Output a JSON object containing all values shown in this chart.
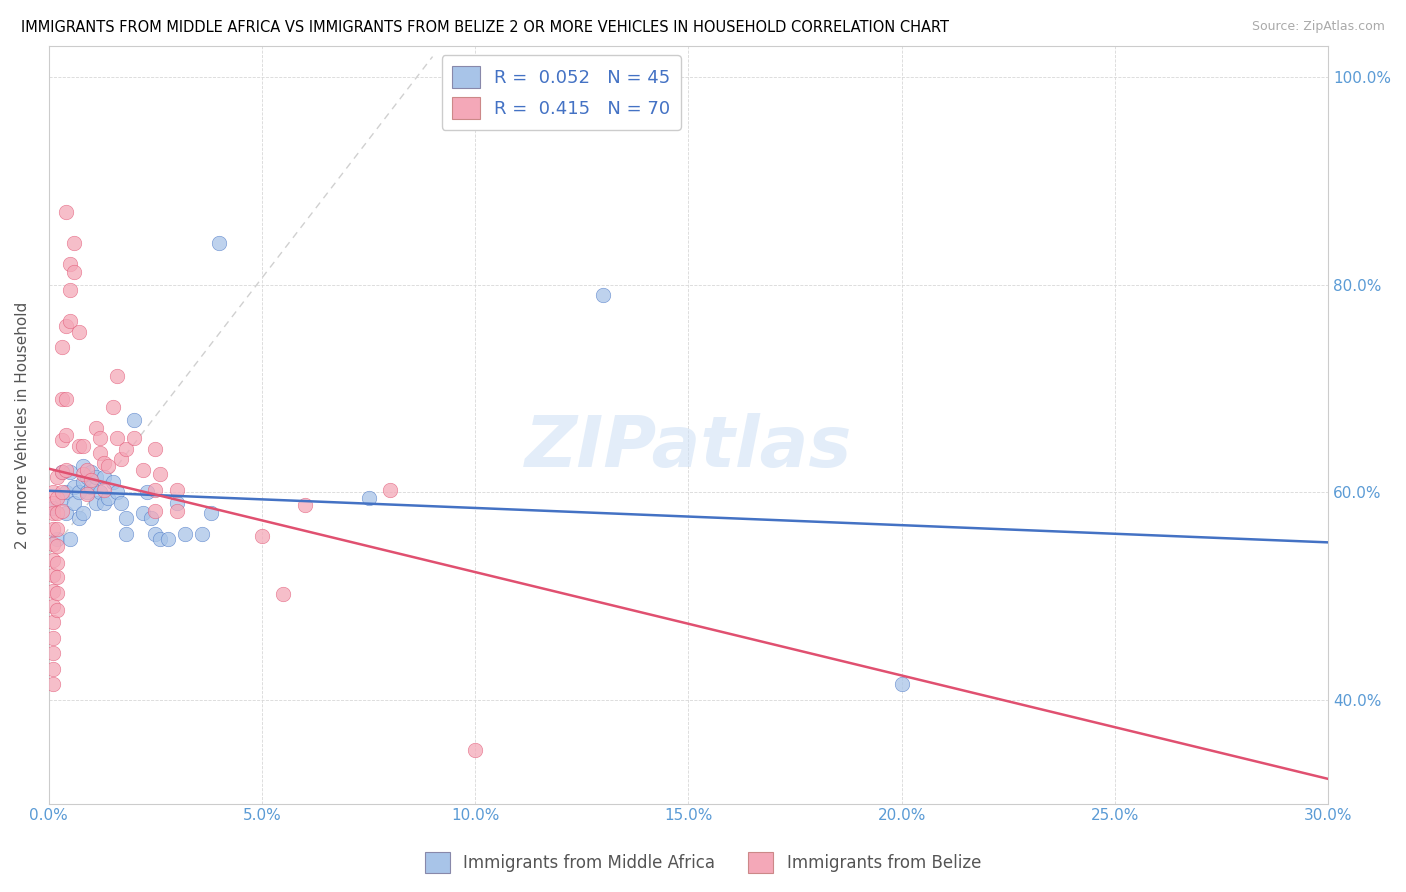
{
  "title": "IMMIGRANTS FROM MIDDLE AFRICA VS IMMIGRANTS FROM BELIZE 2 OR MORE VEHICLES IN HOUSEHOLD CORRELATION CHART",
  "source": "Source: ZipAtlas.com",
  "xmin": 0.0,
  "xmax": 0.3,
  "ymin": 0.3,
  "ymax": 1.03,
  "y_tick_vals": [
    0.4,
    0.6,
    0.8,
    1.0
  ],
  "x_tick_vals": [
    0.0,
    0.05,
    0.1,
    0.15,
    0.2,
    0.25,
    0.3
  ],
  "legend_label_blue": "Immigrants from Middle Africa",
  "legend_label_pink": "Immigrants from Belize",
  "r_blue": "0.052",
  "n_blue": "45",
  "r_pink": "0.415",
  "n_pink": "70",
  "watermark": "ZIPatlas",
  "color_blue": "#a8c4e8",
  "color_pink": "#f4a8b8",
  "trendline_blue": "#4472c4",
  "trendline_pink": "#e05070",
  "diagonal_color": "#d0d0d0",
  "blue_scatter": [
    [
      0.001,
      0.585
    ],
    [
      0.002,
      0.555
    ],
    [
      0.003,
      0.595
    ],
    [
      0.003,
      0.62
    ],
    [
      0.004,
      0.58
    ],
    [
      0.004,
      0.6
    ],
    [
      0.005,
      0.62
    ],
    [
      0.005,
      0.555
    ],
    [
      0.006,
      0.59
    ],
    [
      0.006,
      0.605
    ],
    [
      0.007,
      0.575
    ],
    [
      0.007,
      0.6
    ],
    [
      0.008,
      0.61
    ],
    [
      0.008,
      0.625
    ],
    [
      0.008,
      0.58
    ],
    [
      0.009,
      0.6
    ],
    [
      0.009,
      0.615
    ],
    [
      0.01,
      0.62
    ],
    [
      0.01,
      0.605
    ],
    [
      0.011,
      0.615
    ],
    [
      0.011,
      0.59
    ],
    [
      0.012,
      0.6
    ],
    [
      0.013,
      0.615
    ],
    [
      0.013,
      0.59
    ],
    [
      0.014,
      0.595
    ],
    [
      0.015,
      0.61
    ],
    [
      0.016,
      0.6
    ],
    [
      0.017,
      0.59
    ],
    [
      0.018,
      0.575
    ],
    [
      0.018,
      0.56
    ],
    [
      0.02,
      0.67
    ],
    [
      0.022,
      0.58
    ],
    [
      0.023,
      0.6
    ],
    [
      0.024,
      0.575
    ],
    [
      0.025,
      0.56
    ],
    [
      0.026,
      0.555
    ],
    [
      0.028,
      0.555
    ],
    [
      0.03,
      0.59
    ],
    [
      0.032,
      0.56
    ],
    [
      0.036,
      0.56
    ],
    [
      0.038,
      0.58
    ],
    [
      0.04,
      0.84
    ],
    [
      0.075,
      0.595
    ],
    [
      0.13,
      0.79
    ],
    [
      0.2,
      0.415
    ]
  ],
  "pink_scatter": [
    [
      0.001,
      0.6
    ],
    [
      0.001,
      0.59
    ],
    [
      0.001,
      0.58
    ],
    [
      0.001,
      0.565
    ],
    [
      0.001,
      0.55
    ],
    [
      0.001,
      0.535
    ],
    [
      0.001,
      0.52
    ],
    [
      0.001,
      0.505
    ],
    [
      0.001,
      0.49
    ],
    [
      0.001,
      0.475
    ],
    [
      0.001,
      0.46
    ],
    [
      0.001,
      0.445
    ],
    [
      0.001,
      0.43
    ],
    [
      0.001,
      0.415
    ],
    [
      0.002,
      0.615
    ],
    [
      0.002,
      0.595
    ],
    [
      0.002,
      0.58
    ],
    [
      0.002,
      0.565
    ],
    [
      0.002,
      0.548
    ],
    [
      0.002,
      0.532
    ],
    [
      0.002,
      0.518
    ],
    [
      0.002,
      0.503
    ],
    [
      0.002,
      0.487
    ],
    [
      0.003,
      0.74
    ],
    [
      0.003,
      0.69
    ],
    [
      0.003,
      0.65
    ],
    [
      0.003,
      0.62
    ],
    [
      0.003,
      0.6
    ],
    [
      0.003,
      0.582
    ],
    [
      0.004,
      0.87
    ],
    [
      0.004,
      0.76
    ],
    [
      0.004,
      0.69
    ],
    [
      0.004,
      0.655
    ],
    [
      0.004,
      0.622
    ],
    [
      0.005,
      0.82
    ],
    [
      0.005,
      0.795
    ],
    [
      0.005,
      0.765
    ],
    [
      0.006,
      0.84
    ],
    [
      0.006,
      0.812
    ],
    [
      0.007,
      0.755
    ],
    [
      0.007,
      0.645
    ],
    [
      0.008,
      0.645
    ],
    [
      0.008,
      0.618
    ],
    [
      0.009,
      0.622
    ],
    [
      0.009,
      0.598
    ],
    [
      0.01,
      0.612
    ],
    [
      0.011,
      0.662
    ],
    [
      0.012,
      0.652
    ],
    [
      0.012,
      0.638
    ],
    [
      0.013,
      0.628
    ],
    [
      0.013,
      0.602
    ],
    [
      0.014,
      0.625
    ],
    [
      0.015,
      0.682
    ],
    [
      0.016,
      0.712
    ],
    [
      0.016,
      0.652
    ],
    [
      0.017,
      0.632
    ],
    [
      0.018,
      0.642
    ],
    [
      0.02,
      0.652
    ],
    [
      0.022,
      0.622
    ],
    [
      0.025,
      0.602
    ],
    [
      0.025,
      0.582
    ],
    [
      0.025,
      0.642
    ],
    [
      0.026,
      0.618
    ],
    [
      0.03,
      0.602
    ],
    [
      0.03,
      0.582
    ],
    [
      0.05,
      0.558
    ],
    [
      0.055,
      0.502
    ],
    [
      0.06,
      0.588
    ],
    [
      0.08,
      0.602
    ],
    [
      0.1,
      0.352
    ]
  ]
}
